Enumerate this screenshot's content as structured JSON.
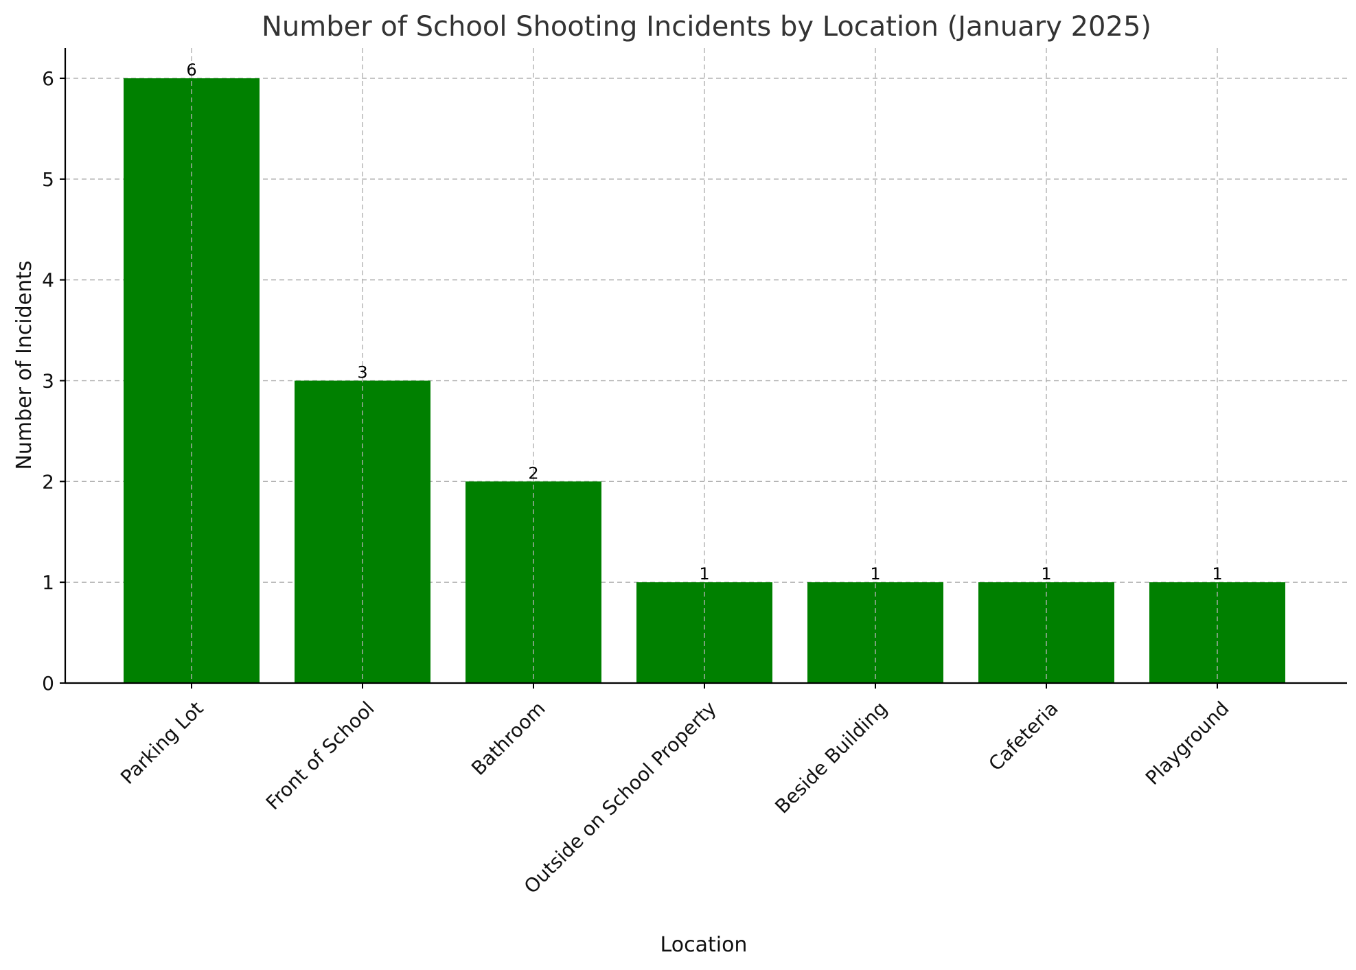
{
  "chart_data": {
    "type": "bar",
    "title": "Number of School Shooting Incidents by Location (January 2025)",
    "xlabel": "Location",
    "ylabel": "Number of Incidents",
    "categories": [
      "Parking Lot",
      "Front of School",
      "Bathroom",
      "Outside on School Property",
      "Beside Building",
      "Cafeteria",
      "Playground"
    ],
    "values": [
      6,
      3,
      2,
      1,
      1,
      1,
      1
    ],
    "data_labels": [
      "6",
      "3",
      "2",
      "1",
      "1",
      "1",
      "1"
    ],
    "y_ticks": [
      "0",
      "1",
      "2",
      "3",
      "4",
      "5",
      "6"
    ],
    "ylim": [
      0,
      6.3
    ],
    "grid": true,
    "bar_color": "#008000",
    "legend": "none"
  }
}
